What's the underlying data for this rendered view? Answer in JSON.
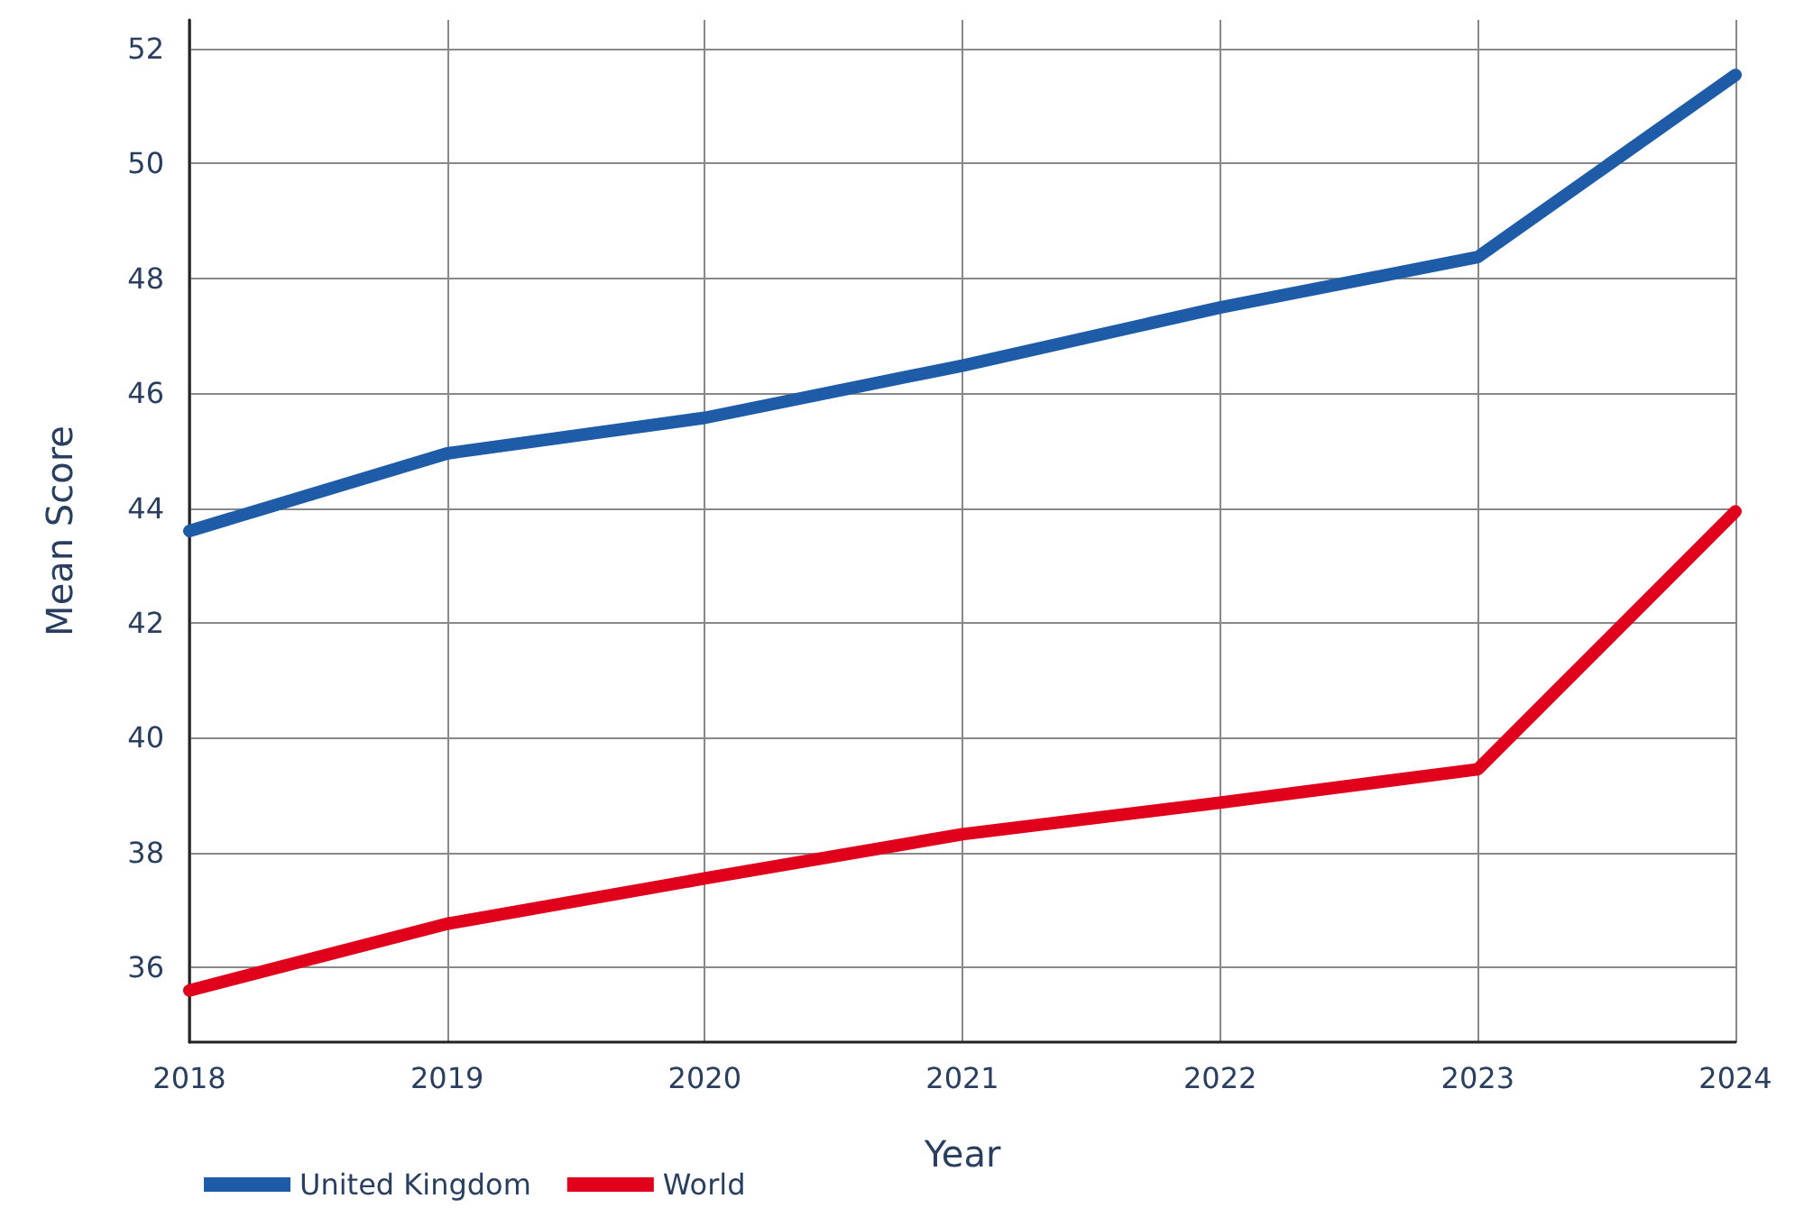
{
  "chart_data": {
    "type": "line",
    "xlabel": "Year",
    "ylabel": "Mean Score",
    "x": [
      2018,
      2019,
      2020,
      2021,
      2022,
      2023,
      2024
    ],
    "xlim": [
      2018,
      2024
    ],
    "xticks": [
      2018,
      2019,
      2020,
      2021,
      2022,
      2023,
      2024
    ],
    "ylim": [
      34.7,
      52.5
    ],
    "yticks": [
      36,
      38,
      40,
      42,
      44,
      46,
      48,
      50,
      52
    ],
    "grid": true,
    "legend": "bottom left",
    "line_style": "solid",
    "series": [
      {
        "name": "United Kingdom",
        "color": "#1f5ca8",
        "values": [
          43.6,
          44.95,
          45.57,
          46.48,
          47.49,
          48.37,
          51.54
        ]
      },
      {
        "name": "World",
        "color": "#e0001b",
        "values": [
          35.6,
          36.76,
          37.55,
          38.32,
          38.87,
          39.45,
          43.94
        ]
      }
    ]
  }
}
